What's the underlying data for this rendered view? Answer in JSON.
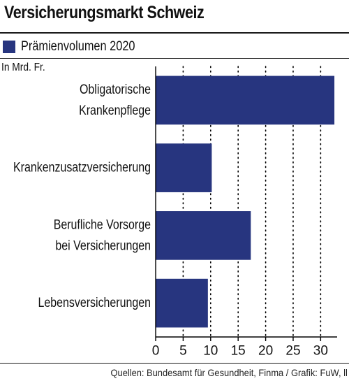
{
  "header": {
    "title": "Versicherungsmarkt Schweiz",
    "unit_label": "In Mrd. Fr.",
    "source": "Quellen: Bundesamt für Gesundheit, Finma  / Grafik: FuW, ll"
  },
  "colors": {
    "bar": "#27357f",
    "text": "#111111",
    "grid": "#000000"
  },
  "chart_data": {
    "type": "bar",
    "orientation": "horizontal",
    "categories": [
      [
        "Obligatorische",
        "Krankenpflege"
      ],
      [
        "Krankenzusatzversicherung"
      ],
      [
        "Berufliche Vorsorge",
        "bei Versicherungen"
      ],
      [
        "Lebensversicherungen"
      ]
    ],
    "series": [
      {
        "name": "Prämienvolumen 2020",
        "values": [
          32.5,
          10.2,
          17.3,
          9.5
        ]
      }
    ],
    "xlim": [
      0,
      33
    ],
    "xticks": [
      0,
      5,
      10,
      15,
      20,
      25,
      30
    ],
    "grid": "vertical dotted",
    "legend": "top-left"
  }
}
